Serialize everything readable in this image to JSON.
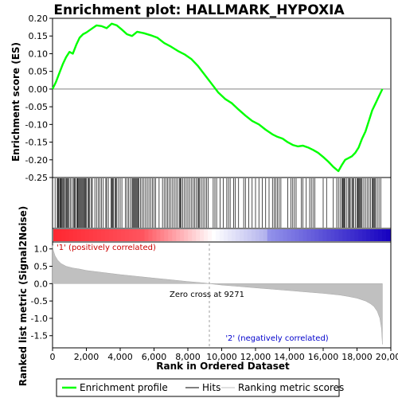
{
  "chart_data": [
    {
      "type": "line",
      "title": "Enrichment plot: HALLMARK_HYPOXIA",
      "ylabel": "Enrichment score (ES)",
      "ylim": [
        -0.25,
        0.2
      ],
      "yticks": [
        "0.20",
        "0.15",
        "0.10",
        "0.05",
        "0.00",
        "-0.05",
        "-0.10",
        "-0.15",
        "-0.20",
        "-0.25"
      ],
      "series": [
        {
          "name": "Enrichment profile",
          "color": "#00ff00",
          "x": [
            0,
            200,
            400,
            600,
            800,
            1000,
            1200,
            1400,
            1600,
            1800,
            2000,
            2300,
            2600,
            2900,
            3200,
            3500,
            3800,
            4100,
            4400,
            4700,
            5000,
            5400,
            5800,
            6200,
            6600,
            7000,
            7400,
            7800,
            8200,
            8600,
            9000,
            9400,
            9800,
            10200,
            10600,
            11000,
            11400,
            11800,
            12200,
            12600,
            13000,
            13300,
            13600,
            13900,
            14200,
            14500,
            14800,
            15100,
            15400,
            15700,
            16000,
            16300,
            16600,
            16900,
            17100,
            17300,
            17500,
            17700,
            17900,
            18100,
            18300,
            18500,
            18700,
            18900,
            19100,
            19300,
            19500
          ],
          "y": [
            0.0,
            0.02,
            0.045,
            0.07,
            0.09,
            0.105,
            0.1,
            0.125,
            0.145,
            0.155,
            0.16,
            0.17,
            0.18,
            0.178,
            0.172,
            0.185,
            0.18,
            0.168,
            0.155,
            0.15,
            0.162,
            0.158,
            0.152,
            0.145,
            0.13,
            0.12,
            0.108,
            0.098,
            0.085,
            0.065,
            0.04,
            0.015,
            -0.01,
            -0.028,
            -0.04,
            -0.058,
            -0.075,
            -0.09,
            -0.1,
            -0.115,
            -0.128,
            -0.135,
            -0.14,
            -0.15,
            -0.158,
            -0.162,
            -0.16,
            -0.165,
            -0.172,
            -0.18,
            -0.192,
            -0.205,
            -0.22,
            -0.232,
            -0.215,
            -0.2,
            -0.195,
            -0.19,
            -0.18,
            -0.165,
            -0.14,
            -0.12,
            -0.09,
            -0.06,
            -0.04,
            -0.02,
            0.0
          ]
        }
      ]
    },
    {
      "type": "bar",
      "series_label": "Hits",
      "xlim": [
        0,
        20000
      ],
      "hits": [
        150,
        280,
        320,
        360,
        420,
        460,
        500,
        540,
        600,
        650,
        700,
        760,
        820,
        860,
        920,
        980,
        1050,
        1150,
        1250,
        1300,
        1350,
        1420,
        1480,
        1500,
        1550,
        1600,
        1650,
        1700,
        1750,
        1800,
        1850,
        1900,
        1950,
        2000,
        2100,
        2150,
        2200,
        2300,
        2350,
        2500,
        2600,
        2700,
        2800,
        2900,
        3000,
        3150,
        3200,
        3300,
        3450,
        3500,
        3550,
        3600,
        3700,
        3750,
        3800,
        3900,
        4000,
        4100,
        4300,
        4400,
        4500,
        4600,
        4700,
        4750,
        4800,
        4850,
        4900,
        4950,
        5000,
        5050,
        5100,
        5200,
        5300,
        5400,
        5500,
        5600,
        5700,
        5800,
        5900,
        6000,
        6100,
        6300,
        6500,
        6600,
        6700,
        6800,
        6900,
        7000,
        7100,
        7200,
        7300,
        7400,
        7500,
        7550,
        7600,
        7700,
        7800,
        7900,
        8000,
        8100,
        8200,
        8300,
        8400,
        8500,
        8600,
        8650,
        8700,
        8800,
        8900,
        9000,
        9100,
        9200,
        9500,
        9600,
        9700,
        9900,
        10100,
        10300,
        10400,
        10500,
        10700,
        10800,
        11000,
        11300,
        11400,
        11600,
        11800,
        12000,
        12200,
        12400,
        12600,
        12800,
        13000,
        13100,
        13200,
        13300,
        13400,
        13500,
        13900,
        14100,
        14200,
        14300,
        14400,
        14700,
        14800,
        15000,
        15200,
        15300,
        15400,
        15500,
        16000,
        16200,
        16600,
        16800,
        16900,
        17000,
        17100,
        17150,
        17200,
        17250,
        17300,
        17400,
        17500,
        17550,
        17600,
        17700,
        17750,
        17800,
        17900,
        18000,
        18050,
        18100,
        18150,
        18200,
        18250,
        18300,
        18400,
        18500,
        18600,
        18700,
        18800,
        18900,
        18950,
        19000,
        19050,
        19100,
        19200,
        19300,
        19400
      ]
    },
    {
      "type": "area",
      "ylabel": "Ranked list metric (Signal2Noise)",
      "xlabel": "Rank in Ordered Dataset",
      "ylim": [
        -1.85,
        1.2
      ],
      "yticks": [
        "1.0",
        "0.5",
        "0.0",
        "-0.5",
        "-1.0",
        "-1.5"
      ],
      "xticks": [
        "0",
        "2,000",
        "4,000",
        "6,000",
        "8,000",
        "10,000",
        "12,000",
        "14,000",
        "16,000",
        "18,000",
        "20,000"
      ],
      "series": [
        {
          "name": "Ranking metric scores",
          "color": "#c0c0c0",
          "x": [
            0,
            50,
            150,
            300,
            500,
            800,
            1200,
            1600,
            2000,
            3000,
            4000,
            5000,
            6000,
            7000,
            8000,
            9000,
            9271,
            10000,
            11000,
            12000,
            13000,
            14000,
            15000,
            16000,
            17000,
            17500,
            18000,
            18500,
            18800,
            19000,
            19200,
            19350,
            19450,
            19500
          ],
          "y": [
            1.1,
            0.95,
            0.8,
            0.68,
            0.58,
            0.5,
            0.45,
            0.42,
            0.38,
            0.32,
            0.26,
            0.21,
            0.16,
            0.11,
            0.06,
            0.02,
            0.0,
            -0.04,
            -0.08,
            -0.12,
            -0.16,
            -0.2,
            -0.24,
            -0.28,
            -0.33,
            -0.37,
            -0.42,
            -0.5,
            -0.58,
            -0.66,
            -0.8,
            -1.0,
            -1.3,
            -1.75
          ]
        }
      ],
      "annotations": [
        {
          "text": "'1' (positively correlated)",
          "color": "#cc0000"
        },
        {
          "text": "Zero cross at 9271",
          "color": "#000000"
        },
        {
          "text": "'2' (negatively correlated)",
          "color": "#0000cc"
        }
      ],
      "zero_cross": 9271
    }
  ],
  "legend": {
    "items": [
      {
        "label": "Enrichment profile",
        "color": "#00ff00"
      },
      {
        "label": "Hits",
        "color": "#000000"
      },
      {
        "label": "Ranking metric scores",
        "color": "#c0c0c0"
      }
    ]
  }
}
